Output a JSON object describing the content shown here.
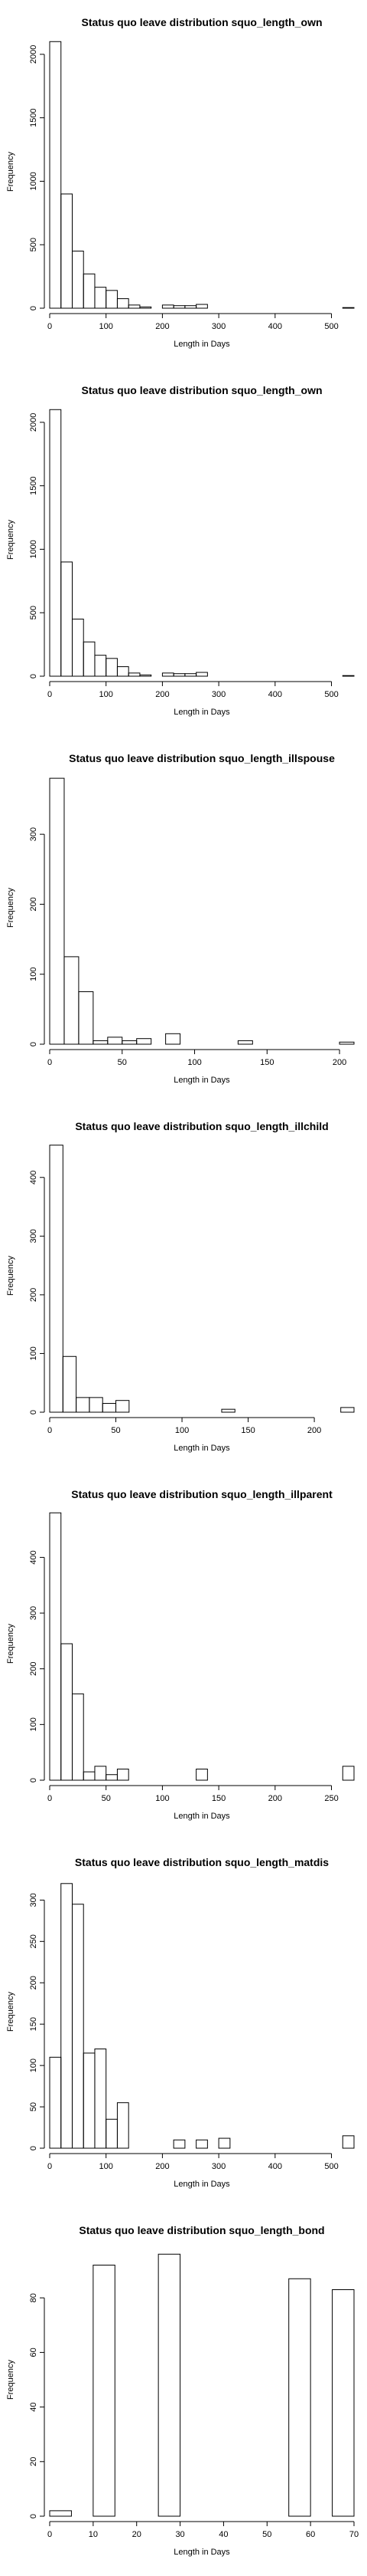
{
  "chart_data": [
    {
      "type": "bar",
      "title": "Status quo leave distribution squo_length_own",
      "xlabel": "Length in Days",
      "ylabel": "Frequency",
      "bin_width": 20,
      "x_start": 0,
      "xlim": [
        0,
        540
      ],
      "ylim": [
        0,
        2150
      ],
      "xticks": [
        0,
        100,
        200,
        300,
        400,
        500
      ],
      "yticks": [
        0,
        500,
        1000,
        1500,
        2000
      ],
      "values": [
        2100,
        900,
        450,
        270,
        165,
        140,
        75,
        25,
        10,
        0,
        25,
        20,
        20,
        30,
        0,
        0,
        0,
        0,
        0,
        0,
        0,
        0,
        0,
        0,
        0,
        0,
        5
      ]
    },
    {
      "type": "bar",
      "title": "Status quo leave distribution squo_length_own",
      "xlabel": "Length in Days",
      "ylabel": "Frequency",
      "bin_width": 20,
      "x_start": 0,
      "xlim": [
        0,
        540
      ],
      "ylim": [
        0,
        2150
      ],
      "xticks": [
        0,
        100,
        200,
        300,
        400,
        500
      ],
      "yticks": [
        0,
        500,
        1000,
        1500,
        2000
      ],
      "values": [
        2100,
        900,
        450,
        270,
        165,
        140,
        75,
        25,
        10,
        0,
        25,
        20,
        20,
        30,
        0,
        0,
        0,
        0,
        0,
        0,
        0,
        0,
        0,
        0,
        0,
        0,
        5
      ]
    },
    {
      "type": "bar",
      "title": "Status quo leave distribution squo_length_illspouse",
      "xlabel": "Length in Days",
      "ylabel": "Frequency",
      "bin_width": 10,
      "x_start": 0,
      "xlim": [
        0,
        210
      ],
      "ylim": [
        0,
        390
      ],
      "xticks": [
        0,
        50,
        100,
        150,
        200
      ],
      "yticks": [
        0,
        100,
        200,
        300
      ],
      "values": [
        380,
        125,
        75,
        5,
        10,
        5,
        8,
        0,
        15,
        0,
        0,
        0,
        0,
        5,
        0,
        0,
        0,
        0,
        0,
        0,
        3
      ]
    },
    {
      "type": "bar",
      "title": "Status quo leave distribution squo_length_illchild",
      "xlabel": "Length in Days",
      "ylabel": "Frequency",
      "bin_width": 10,
      "x_start": 0,
      "xlim": [
        0,
        230
      ],
      "ylim": [
        0,
        465
      ],
      "xticks": [
        0,
        50,
        100,
        150,
        200
      ],
      "yticks": [
        0,
        100,
        200,
        300,
        400
      ],
      "values": [
        455,
        95,
        25,
        25,
        15,
        20,
        0,
        0,
        0,
        0,
        0,
        0,
        0,
        5,
        0,
        0,
        0,
        0,
        0,
        0,
        0,
        0,
        8
      ]
    },
    {
      "type": "bar",
      "title": "Status quo leave distribution squo_length_illparent",
      "xlabel": "Length in Days",
      "ylabel": "Frequency",
      "bin_width": 10,
      "x_start": 0,
      "xlim": [
        0,
        270
      ],
      "ylim": [
        0,
        490
      ],
      "xticks": [
        0,
        50,
        100,
        150,
        200,
        250
      ],
      "yticks": [
        0,
        100,
        200,
        300,
        400
      ],
      "values": [
        480,
        245,
        155,
        15,
        25,
        10,
        20,
        0,
        0,
        0,
        0,
        0,
        0,
        20,
        0,
        0,
        0,
        0,
        0,
        0,
        0,
        0,
        0,
        0,
        0,
        0,
        25
      ]
    },
    {
      "type": "bar",
      "title": "Status quo leave distribution squo_length_matdis",
      "xlabel": "Length in Days",
      "ylabel": "Frequency",
      "bin_width": 20,
      "x_start": 0,
      "xlim": [
        0,
        540
      ],
      "ylim": [
        0,
        330
      ],
      "xticks": [
        0,
        100,
        200,
        300,
        400,
        500
      ],
      "yticks": [
        0,
        50,
        100,
        150,
        200,
        250,
        300
      ],
      "values": [
        110,
        320,
        295,
        115,
        120,
        35,
        55,
        0,
        0,
        0,
        0,
        10,
        0,
        10,
        0,
        12,
        0,
        0,
        0,
        0,
        0,
        0,
        0,
        0,
        0,
        0,
        15
      ]
    },
    {
      "type": "bar",
      "title": "Status quo leave distribution squo_length_bond",
      "xlabel": "Length in Days",
      "ylabel": "Frequency",
      "bin_width": 5,
      "x_start": 0,
      "xlim": [
        0,
        70
      ],
      "ylim": [
        0,
        100
      ],
      "xticks": [
        0,
        10,
        20,
        30,
        40,
        50,
        60,
        70
      ],
      "yticks": [
        0,
        20,
        40,
        60,
        80
      ],
      "values": [
        2,
        0,
        92,
        0,
        0,
        96,
        0,
        0,
        0,
        0,
        0,
        87,
        0,
        83
      ]
    }
  ]
}
